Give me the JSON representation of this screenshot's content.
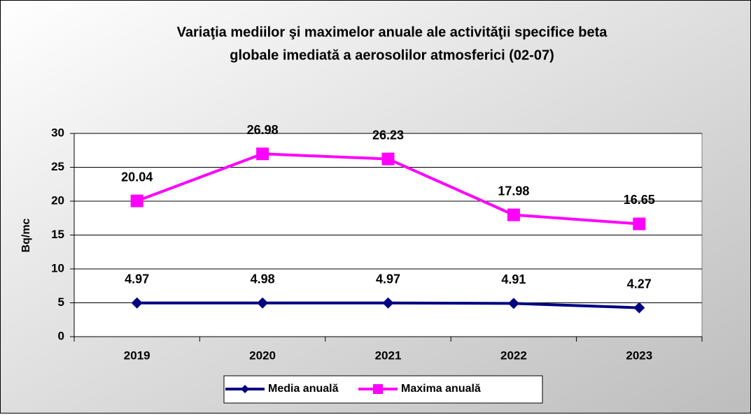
{
  "chart_data": {
    "type": "line",
    "title": [
      "Variaţia mediilor şi maximelor anuale ale activităţii specifice beta",
      "globale imediată a aerosolilor atmosferici (02-07)"
    ],
    "y_label": "Bq/mc",
    "categories": [
      "2019",
      "2020",
      "2021",
      "2022",
      "2023"
    ],
    "series": [
      {
        "name": "Media anuală",
        "color": "#000080",
        "marker": "diamond",
        "values": [
          4.97,
          4.98,
          4.97,
          4.91,
          4.27
        ]
      },
      {
        "name": "Maxima anuală",
        "color": "#ff00ff",
        "marker": "square",
        "values": [
          20.04,
          26.98,
          26.23,
          17.98,
          16.65
        ]
      }
    ],
    "ylim": [
      0,
      30
    ],
    "yticks": [
      0,
      5,
      10,
      15,
      20,
      25,
      30
    ],
    "grid": true,
    "legend": "bottom"
  }
}
